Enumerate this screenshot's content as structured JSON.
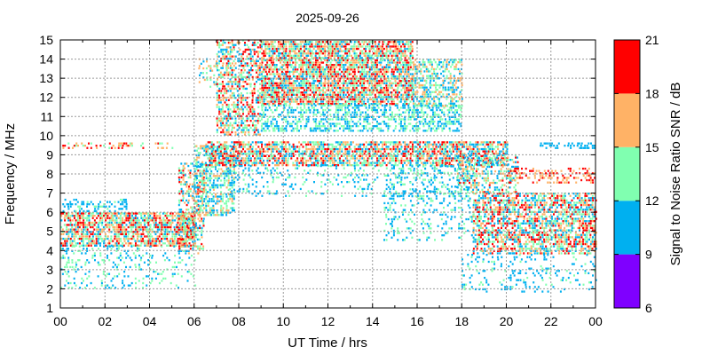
{
  "chart_data": {
    "type": "heatmap",
    "title": "2025-09-26",
    "xlabel": "UT Time / hrs",
    "ylabel": "Frequency / MHz",
    "colorbar_label": "Signal to Noise Ratio SNR / dB",
    "xlim": [
      0,
      24
    ],
    "ylim": [
      1,
      15
    ],
    "x_ticks": [
      "00",
      "02",
      "04",
      "06",
      "08",
      "10",
      "12",
      "14",
      "16",
      "18",
      "20",
      "22",
      "00"
    ],
    "y_ticks": [
      "1",
      "2",
      "3",
      "4",
      "5",
      "6",
      "7",
      "8",
      "9",
      "10",
      "11",
      "12",
      "13",
      "14",
      "15"
    ],
    "grid": true,
    "colorbar": {
      "range": [
        6,
        21
      ],
      "ticks": [
        "6",
        "9",
        "12",
        "15",
        "18",
        "21"
      ],
      "bands": [
        {
          "from": 6,
          "to": 9,
          "color": "#7f00ff"
        },
        {
          "from": 9,
          "to": 12,
          "color": "#00b0f0"
        },
        {
          "from": 12,
          "to": 15,
          "color": "#80ffb0"
        },
        {
          "from": 15,
          "to": 18,
          "color": "#ffb266"
        },
        {
          "from": 18,
          "to": 21,
          "color": "#ff0000"
        }
      ]
    },
    "regions": [
      {
        "t": [
          0,
          6
        ],
        "f": [
          4.2,
          6.0
        ],
        "snr": [
          10,
          21
        ],
        "density": 0.75
      },
      {
        "t": [
          0,
          6
        ],
        "f": [
          2.0,
          4.2
        ],
        "snr": [
          9,
          15
        ],
        "density": 0.18
      },
      {
        "t": [
          0,
          3
        ],
        "f": [
          6.0,
          6.7
        ],
        "snr": [
          9,
          13
        ],
        "density": 0.35
      },
      {
        "t": [
          0,
          5
        ],
        "f": [
          9.3,
          9.6
        ],
        "snr": [
          14,
          20
        ],
        "density": 0.3
      },
      {
        "t": [
          5.3,
          6.4
        ],
        "f": [
          3.8,
          8.5
        ],
        "snr": [
          9,
          20
        ],
        "density": 0.45
      },
      {
        "t": [
          6.0,
          7.8
        ],
        "f": [
          5.8,
          9.4
        ],
        "snr": [
          9,
          17
        ],
        "density": 0.55
      },
      {
        "t": [
          6.2,
          7.0
        ],
        "f": [
          12.5,
          14.0
        ],
        "snr": [
          9,
          18
        ],
        "density": 0.25
      },
      {
        "t": [
          7.0,
          9.0
        ],
        "f": [
          10.0,
          15.0
        ],
        "snr": [
          9,
          21
        ],
        "density": 0.55
      },
      {
        "t": [
          9.0,
          15.8
        ],
        "f": [
          11.6,
          14.9
        ],
        "snr": [
          10,
          21
        ],
        "density": 0.8
      },
      {
        "t": [
          9.0,
          18.0
        ],
        "f": [
          10.2,
          11.6
        ],
        "snr": [
          9,
          15
        ],
        "density": 0.5
      },
      {
        "t": [
          15.8,
          18.0
        ],
        "f": [
          11.5,
          14.0
        ],
        "snr": [
          9,
          18
        ],
        "density": 0.55
      },
      {
        "t": [
          6.5,
          20.0
        ],
        "f": [
          8.4,
          9.6
        ],
        "snr": [
          9,
          21
        ],
        "density": 0.7
      },
      {
        "t": [
          7.5,
          18.0
        ],
        "f": [
          6.8,
          8.4
        ],
        "snr": [
          9,
          14
        ],
        "density": 0.18
      },
      {
        "t": [
          14.5,
          18.5
        ],
        "f": [
          4.5,
          8.4
        ],
        "snr": [
          9,
          14
        ],
        "density": 0.2
      },
      {
        "t": [
          17.8,
          20.5
        ],
        "f": [
          7.0,
          9.0
        ],
        "snr": [
          9,
          19
        ],
        "density": 0.45
      },
      {
        "t": [
          18.5,
          24.0
        ],
        "f": [
          3.8,
          7.0
        ],
        "snr": [
          9,
          21
        ],
        "density": 0.65
      },
      {
        "t": [
          18.0,
          24.0
        ],
        "f": [
          1.8,
          3.8
        ],
        "snr": [
          9,
          13
        ],
        "density": 0.15
      },
      {
        "t": [
          20.0,
          24.0
        ],
        "f": [
          7.5,
          8.3
        ],
        "snr": [
          15,
          21
        ],
        "density": 0.35
      },
      {
        "t": [
          21.5,
          24.0
        ],
        "f": [
          9.3,
          9.6
        ],
        "snr": [
          9,
          12
        ],
        "density": 0.4
      }
    ]
  }
}
